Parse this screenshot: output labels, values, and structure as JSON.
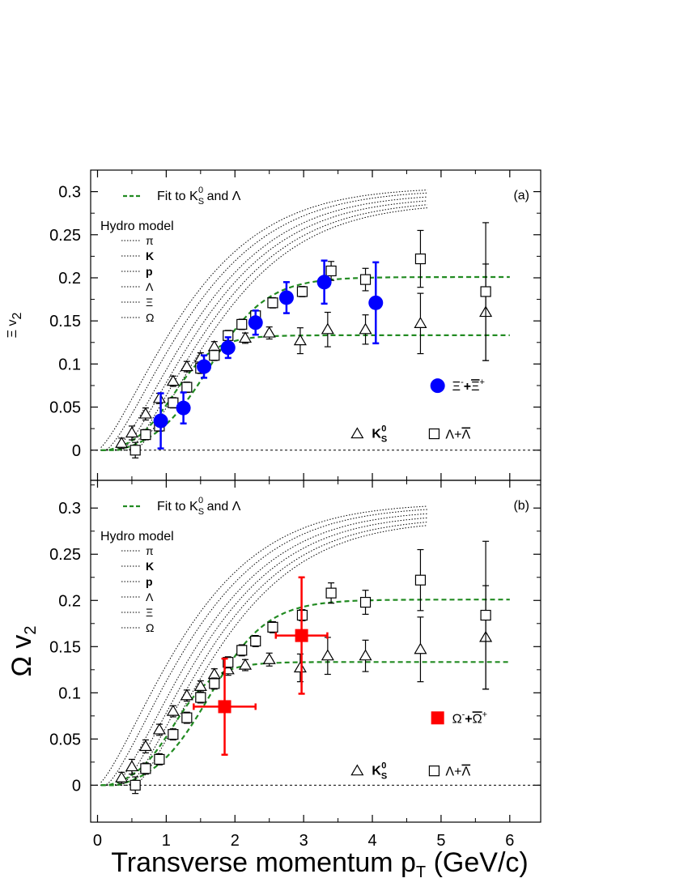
{
  "chart_data": [
    {
      "type": "scatter",
      "panel_label": "(a)",
      "ylabel_symbol": "Ξ",
      "ylabel": "v2",
      "xlim": [
        -0.1,
        6.45
      ],
      "ylim": [
        -0.035,
        0.325
      ],
      "yticks": [
        0,
        0.05,
        0.1,
        0.15,
        0.2,
        0.25,
        0.3
      ],
      "ytick_labels": [
        "0",
        "0.05",
        "0.1",
        "0.15",
        "0.2",
        "0.25",
        "0.3"
      ],
      "fit_label": "Fit to K",
      "fit_label_sub": "S",
      "fit_label_sup": "0",
      "fit_label_tail": " and Λ",
      "hydro_title": "Hydro model",
      "hydro_labels": [
        "π",
        "K",
        "p",
        "Λ",
        "Ξ",
        "Ω"
      ],
      "marker_legend": [
        {
          "name": "Ξ-+Ξ+ (bar)",
          "text": "Ξ",
          "sup": "-",
          "plus": "+",
          "bar": "Ξ",
          "sup2": "+",
          "color": "#0000ff",
          "shape": "circle"
        }
      ],
      "k0s_label": "K",
      "k0s_sub": "S",
      "k0s_sup": "0",
      "lambda_label": "Λ+",
      "lambda_bar": "Λ",
      "series": [
        {
          "name": "K0S",
          "shape": "triangle",
          "color": "#000000",
          "points": [
            [
              0.35,
              0.008,
              0.006
            ],
            [
              0.5,
              0.02,
              0.008
            ],
            [
              0.7,
              0.042,
              0.007
            ],
            [
              0.9,
              0.06,
              0.006
            ],
            [
              1.1,
              0.08,
              0.006
            ],
            [
              1.3,
              0.097,
              0.006
            ],
            [
              1.5,
              0.107,
              0.006
            ],
            [
              1.7,
              0.12,
              0.006
            ],
            [
              1.9,
              0.125,
              0.006
            ],
            [
              2.15,
              0.13,
              0.006
            ],
            [
              2.5,
              0.136,
              0.007
            ],
            [
              2.95,
              0.127,
              0.015
            ],
            [
              3.35,
              0.14,
              0.02
            ],
            [
              3.9,
              0.14,
              0.017
            ],
            [
              4.7,
              0.147,
              0.035
            ],
            [
              5.65,
              0.16,
              0.056
            ]
          ]
        },
        {
          "name": "Λ+Λbar",
          "shape": "square",
          "color": "#000000",
          "points": [
            [
              0.55,
              0.0,
              0.009
            ],
            [
              0.7,
              0.018,
              0.006
            ],
            [
              0.9,
              0.028,
              0.006
            ],
            [
              1.1,
              0.055,
              0.006
            ],
            [
              1.3,
              0.073,
              0.006
            ],
            [
              1.5,
              0.095,
              0.006
            ],
            [
              1.7,
              0.11,
              0.006
            ],
            [
              1.9,
              0.133,
              0.006
            ],
            [
              2.1,
              0.146,
              0.006
            ],
            [
              2.3,
              0.156,
              0.006
            ],
            [
              2.55,
              0.171,
              0.006
            ],
            [
              2.98,
              0.184,
              0.006
            ],
            [
              3.4,
              0.208,
              0.011
            ],
            [
              3.9,
              0.198,
              0.013
            ],
            [
              4.7,
              0.222,
              0.033
            ],
            [
              5.65,
              0.184,
              0.08
            ]
          ]
        },
        {
          "name": "Ξ-+Ξ+bar",
          "shape": "circle",
          "color": "#0000ff",
          "points": [
            [
              0.92,
              0.034,
              0.032
            ],
            [
              1.25,
              0.049,
              0.018
            ],
            [
              1.55,
              0.097,
              0.013
            ],
            [
              1.9,
              0.119,
              0.012
            ],
            [
              2.3,
              0.148,
              0.014
            ],
            [
              2.75,
              0.177,
              0.018
            ],
            [
              3.3,
              0.195,
              0.025
            ],
            [
              4.05,
              0.171,
              0.047
            ]
          ]
        }
      ],
      "fits": [
        {
          "name": "fit-high",
          "plateau": 0.209
        },
        {
          "name": "fit-low",
          "plateau": 0.139
        }
      ]
    },
    {
      "type": "scatter",
      "panel_label": "(b)",
      "ylabel_symbol": "Ω",
      "ylabel": "v2",
      "xlim": [
        -0.1,
        6.45
      ],
      "ylim": [
        -0.04,
        0.33
      ],
      "yticks": [
        0,
        0.05,
        0.1,
        0.15,
        0.2,
        0.25,
        0.3
      ],
      "ytick_labels": [
        "0",
        "0.05",
        "0.1",
        "0.15",
        "0.2",
        "0.25",
        "0.3"
      ],
      "xticks": [
        0,
        1,
        2,
        3,
        4,
        5,
        6
      ],
      "xtick_labels": [
        "0",
        "1",
        "2",
        "3",
        "4",
        "5",
        "6"
      ],
      "xlabel": "Transverse momentum p",
      "xlabel_sub": "T",
      "xlabel_tail": " (GeV/c)",
      "fit_label": "Fit to K",
      "fit_label_sub": "S",
      "fit_label_sup": "0",
      "fit_label_tail": " and Λ",
      "hydro_title": "Hydro model",
      "hydro_labels": [
        "π",
        "K",
        "p",
        "Λ",
        "Ξ",
        "Ω"
      ],
      "marker_legend": [
        {
          "name": "Ω-+Ω+ (bar)",
          "text": "Ω",
          "sup": "-",
          "plus": "+",
          "bar": "Ω",
          "sup2": "+",
          "color": "#ff0000",
          "shape": "square"
        }
      ],
      "k0s_label": "K",
      "k0s_sub": "S",
      "k0s_sup": "0",
      "lambda_label": "Λ+",
      "lambda_bar": "Λ",
      "series": [
        {
          "name": "K0S",
          "shape": "triangle",
          "color": "#000000",
          "points": [
            [
              0.35,
              0.008,
              0.006
            ],
            [
              0.5,
              0.02,
              0.008
            ],
            [
              0.7,
              0.042,
              0.007
            ],
            [
              0.9,
              0.06,
              0.006
            ],
            [
              1.1,
              0.08,
              0.006
            ],
            [
              1.3,
              0.097,
              0.006
            ],
            [
              1.5,
              0.107,
              0.006
            ],
            [
              1.7,
              0.12,
              0.006
            ],
            [
              1.9,
              0.125,
              0.006
            ],
            [
              2.15,
              0.13,
              0.006
            ],
            [
              2.5,
              0.136,
              0.007
            ],
            [
              2.95,
              0.127,
              0.015
            ],
            [
              3.35,
              0.14,
              0.02
            ],
            [
              3.9,
              0.14,
              0.017
            ],
            [
              4.7,
              0.147,
              0.035
            ],
            [
              5.65,
              0.16,
              0.056
            ]
          ]
        },
        {
          "name": "Λ+Λbar",
          "shape": "square",
          "color": "#000000",
          "points": [
            [
              0.55,
              0.0,
              0.009
            ],
            [
              0.7,
              0.018,
              0.006
            ],
            [
              0.9,
              0.028,
              0.006
            ],
            [
              1.1,
              0.055,
              0.006
            ],
            [
              1.3,
              0.073,
              0.006
            ],
            [
              1.5,
              0.095,
              0.006
            ],
            [
              1.7,
              0.11,
              0.006
            ],
            [
              1.9,
              0.133,
              0.006
            ],
            [
              2.1,
              0.146,
              0.006
            ],
            [
              2.3,
              0.156,
              0.006
            ],
            [
              2.55,
              0.171,
              0.006
            ],
            [
              2.98,
              0.184,
              0.006
            ],
            [
              3.4,
              0.208,
              0.011
            ],
            [
              3.9,
              0.198,
              0.013
            ],
            [
              4.7,
              0.222,
              0.033
            ],
            [
              5.65,
              0.184,
              0.08
            ]
          ]
        },
        {
          "name": "Ω-+Ω+bar",
          "shape": "bigsquare",
          "color": "#ff0000",
          "points": [
            [
              1.85,
              0.085,
              0.052,
              0.9
            ],
            [
              2.97,
              0.162,
              0.063,
              0.75
            ]
          ]
        }
      ],
      "fits": [
        {
          "name": "fit-high",
          "plateau": 0.209
        },
        {
          "name": "fit-low",
          "plateau": 0.139
        }
      ]
    }
  ]
}
